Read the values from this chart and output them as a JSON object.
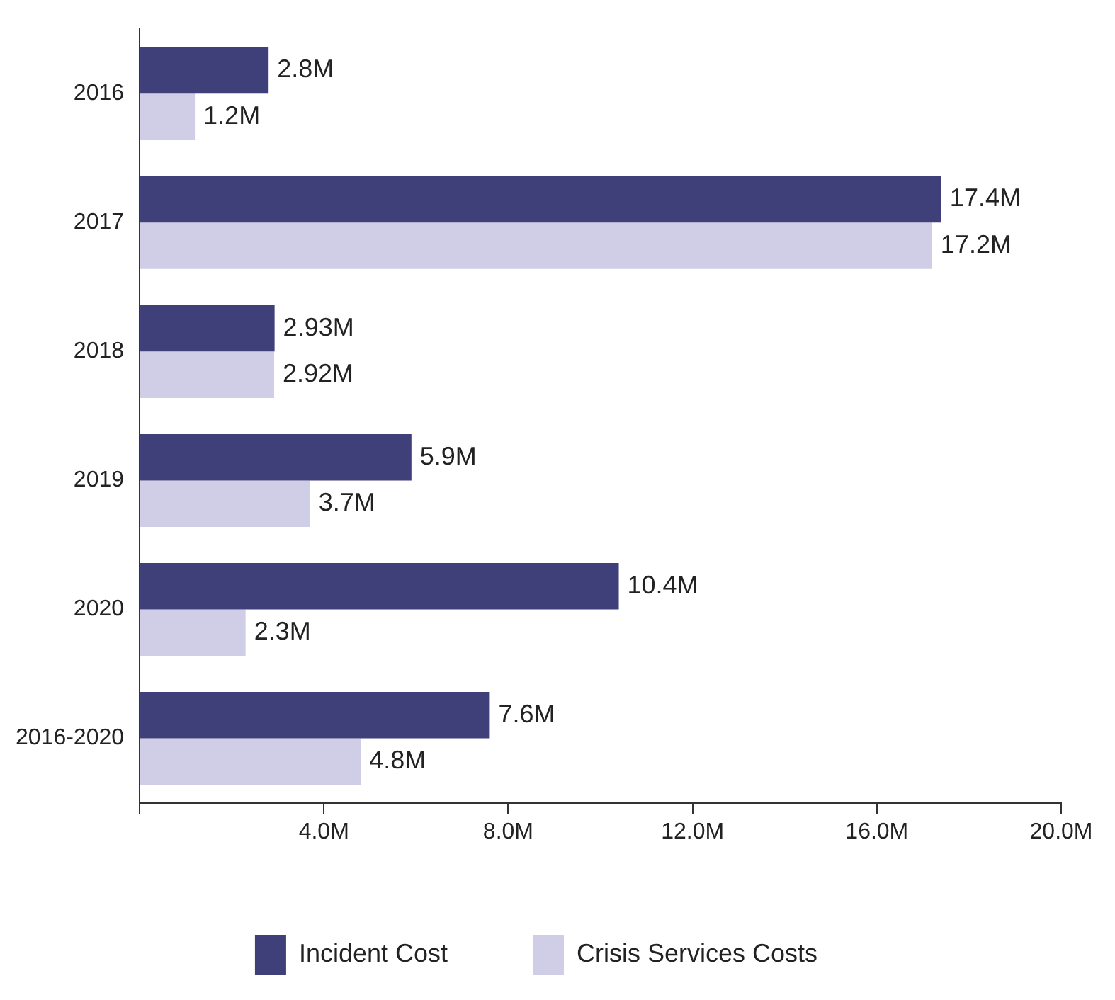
{
  "chart_data": {
    "type": "bar",
    "orientation": "horizontal",
    "categories": [
      "2016",
      "2017",
      "2018",
      "2019",
      "2020",
      "2016-2020"
    ],
    "series": [
      {
        "name": "Incident Cost",
        "color": "#3f3f7a",
        "values": [
          2.8,
          17.4,
          2.93,
          5.9,
          10.4,
          7.6
        ],
        "value_labels": [
          "2.8M",
          "17.4M",
          "2.93M",
          "5.9M",
          "10.4M",
          "7.6M"
        ]
      },
      {
        "name": "Crisis Services Costs",
        "color": "#d0cde6",
        "values": [
          1.2,
          17.2,
          2.92,
          3.7,
          2.3,
          4.8
        ],
        "value_labels": [
          "1.2M",
          "17.2M",
          "2.92M",
          "3.7M",
          "2.3M",
          "4.8M"
        ]
      }
    ],
    "xlim": [
      0,
      20
    ],
    "xticks": [
      {
        "value": 0,
        "label": null
      },
      {
        "value": 4,
        "label": "4.0M"
      },
      {
        "value": 8,
        "label": "8.0M"
      },
      {
        "value": 12,
        "label": "12.0M"
      },
      {
        "value": 16,
        "label": "16.0M"
      },
      {
        "value": 20,
        "label": "20.0M"
      }
    ],
    "grid": false,
    "legend": "bottom"
  }
}
